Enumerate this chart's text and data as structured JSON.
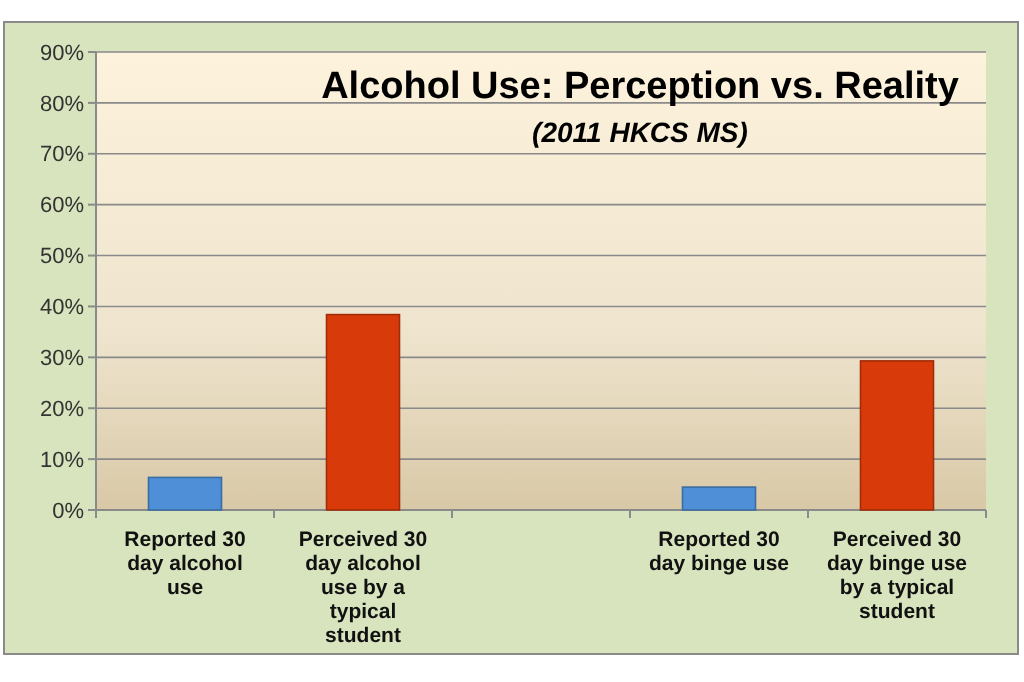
{
  "chart_data": {
    "type": "bar",
    "title": "Alcohol Use: Perception vs. Reality",
    "subtitle": "(2011 HKCS MS)",
    "categories": [
      "Reported 30 day alcohol use",
      "Perceived 30 day alcohol use by a typical student",
      null,
      "Reported 30 day binge use",
      "Perceived 30 day binge use by a typical student"
    ],
    "values": [
      6.4,
      38.4,
      null,
      4.5,
      29.3
    ],
    "colors": [
      "#4f8fd8",
      "#d83a0a",
      null,
      "#4f8fd8",
      "#d83a0a"
    ],
    "ylim": [
      0,
      90
    ],
    "yticks": [
      {
        "value": 0,
        "label": "0%"
      },
      {
        "value": 10,
        "label": "10%"
      },
      {
        "value": 20,
        "label": "20%"
      },
      {
        "value": 30,
        "label": "30%"
      },
      {
        "value": 40,
        "label": "40%"
      },
      {
        "value": 50,
        "label": "50%"
      },
      {
        "value": 60,
        "label": "60%"
      },
      {
        "value": 70,
        "label": "70%"
      },
      {
        "value": 80,
        "label": "80%"
      },
      {
        "value": 90,
        "label": "90%"
      }
    ],
    "grid": "y"
  }
}
